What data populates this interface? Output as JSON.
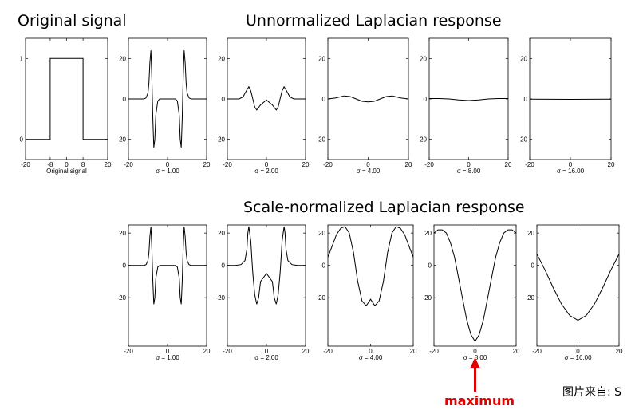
{
  "titles": {
    "original": "Original signal",
    "unnormalized": "Unnormalized Laplacian response",
    "normalized": "Scale-normalized Laplacian response"
  },
  "annotation": {
    "label": "maximum",
    "color": "#e00000"
  },
  "credit": "图片来自: S",
  "chart_data": [
    {
      "id": "orig",
      "type": "line",
      "xlabel": "Original signal",
      "xlim": [
        -20,
        20
      ],
      "ylim": [
        -0.25,
        1.25
      ],
      "xticks": [
        -20,
        -8,
        0,
        8,
        20
      ],
      "yticks": [
        0,
        1
      ],
      "series": [
        {
          "x": [
            -20,
            -8,
            -8,
            8,
            8,
            20
          ],
          "y": [
            0,
            0,
            1,
            1,
            0,
            0
          ]
        }
      ]
    },
    {
      "id": "u1",
      "type": "line",
      "xlabel": "σ = 1.00",
      "xlim": [
        -20,
        20
      ],
      "ylim": [
        -30,
        30
      ],
      "xticks": [
        -20,
        0,
        20
      ],
      "yticks": [
        -20,
        0,
        20
      ],
      "series": [
        {
          "x": [
            -20,
            -12,
            -11,
            -10,
            -9.5,
            -9,
            -8.5,
            -8,
            -7.5,
            -7,
            -6.5,
            -6,
            -5,
            -4,
            0,
            4,
            5,
            6,
            6.5,
            7,
            7.5,
            8,
            8.5,
            9,
            9.5,
            10,
            11,
            12,
            20
          ],
          "y": [
            0,
            0,
            0.5,
            3,
            8,
            18,
            24,
            10,
            -10,
            -24,
            -20,
            -8,
            -1,
            0,
            0,
            0,
            -1,
            -8,
            -20,
            -24,
            -10,
            10,
            24,
            18,
            8,
            3,
            0.5,
            0,
            0
          ]
        }
      ]
    },
    {
      "id": "u2",
      "type": "line",
      "xlabel": "σ = 2.00",
      "xlim": [
        -20,
        20
      ],
      "ylim": [
        -30,
        30
      ],
      "xticks": [
        -20,
        0,
        20
      ],
      "yticks": [
        -20,
        0,
        20
      ],
      "series": [
        {
          "x": [
            -20,
            -14,
            -12,
            -10,
            -9,
            -8,
            -7,
            -6,
            -5,
            -3,
            0,
            3,
            5,
            6,
            7,
            8,
            9,
            10,
            12,
            14,
            20
          ],
          "y": [
            0,
            0,
            1,
            4.5,
            6,
            4,
            0,
            -4,
            -5.5,
            -3,
            -0.5,
            -3,
            -5.5,
            -4,
            0,
            4,
            6,
            4.5,
            1,
            0,
            0
          ]
        }
      ]
    },
    {
      "id": "u4",
      "type": "line",
      "xlabel": "σ = 4.00",
      "xlim": [
        -20,
        20
      ],
      "ylim": [
        -30,
        30
      ],
      "xticks": [
        -20,
        0,
        20
      ],
      "yticks": [
        -20,
        0,
        20
      ],
      "series": [
        {
          "x": [
            -20,
            -16,
            -12,
            -9,
            -6,
            -3,
            0,
            3,
            6,
            9,
            12,
            16,
            20
          ],
          "y": [
            0,
            0.5,
            1.5,
            1.2,
            0,
            -1.2,
            -1.5,
            -1.2,
            0,
            1.2,
            1.5,
            0.5,
            0
          ]
        }
      ]
    },
    {
      "id": "u8",
      "type": "line",
      "xlabel": "σ = 8.00",
      "xlim": [
        -20,
        20
      ],
      "ylim": [
        -30,
        30
      ],
      "xticks": [
        -20,
        0,
        20
      ],
      "yticks": [
        -20,
        0,
        20
      ],
      "series": [
        {
          "x": [
            -20,
            -15,
            -10,
            -5,
            0,
            5,
            10,
            15,
            20
          ],
          "y": [
            0.2,
            0.2,
            0,
            -0.5,
            -0.8,
            -0.5,
            0,
            0.2,
            0.2
          ]
        }
      ]
    },
    {
      "id": "u16",
      "type": "line",
      "xlabel": "σ = 16.00",
      "xlim": [
        -20,
        20
      ],
      "ylim": [
        -30,
        30
      ],
      "xticks": [
        -20,
        0,
        20
      ],
      "yticks": [
        -20,
        0,
        20
      ],
      "series": [
        {
          "x": [
            -20,
            0,
            20
          ],
          "y": [
            -0.1,
            -0.2,
            -0.1
          ]
        }
      ]
    },
    {
      "id": "n1",
      "type": "line",
      "xlabel": "σ = 1.00",
      "xlim": [
        -20,
        20
      ],
      "ylim": [
        -50,
        25
      ],
      "xticks": [
        -20,
        0,
        20
      ],
      "yticks": [
        -20,
        0,
        20
      ],
      "series": [
        {
          "x": [
            -20,
            -12,
            -11,
            -10,
            -9.5,
            -9,
            -8.5,
            -8,
            -7.5,
            -7,
            -6.5,
            -6,
            -5,
            -4,
            0,
            4,
            5,
            6,
            6.5,
            7,
            7.5,
            8,
            8.5,
            9,
            9.5,
            10,
            11,
            12,
            20
          ],
          "y": [
            0,
            0,
            0.5,
            3,
            8,
            18,
            24,
            10,
            -10,
            -24,
            -20,
            -8,
            -1,
            0,
            0,
            0,
            -1,
            -8,
            -20,
            -24,
            -10,
            10,
            24,
            18,
            8,
            3,
            0.5,
            0,
            0
          ]
        }
      ]
    },
    {
      "id": "n2",
      "type": "line",
      "xlabel": "σ = 2.00",
      "xlim": [
        -20,
        20
      ],
      "ylim": [
        -50,
        25
      ],
      "xticks": [
        -20,
        0,
        20
      ],
      "yticks": [
        -20,
        0,
        20
      ],
      "series": [
        {
          "x": [
            -20,
            -16,
            -13,
            -11,
            -10,
            -9.5,
            -9,
            -8,
            -7.5,
            -7,
            -6,
            -5,
            -4,
            -3,
            0,
            3,
            4,
            5,
            6,
            7,
            7.5,
            8,
            9,
            9.5,
            10,
            11,
            13,
            16,
            20
          ],
          "y": [
            0,
            0,
            0.5,
            3,
            10,
            20,
            24,
            15,
            5,
            -5,
            -18,
            -24,
            -20,
            -10,
            -5,
            -10,
            -20,
            -24,
            -18,
            -5,
            5,
            15,
            24,
            20,
            10,
            3,
            0.5,
            0,
            0
          ]
        }
      ]
    },
    {
      "id": "n4",
      "type": "line",
      "xlabel": "σ = 4.00",
      "xlim": [
        -20,
        20
      ],
      "ylim": [
        -50,
        25
      ],
      "xticks": [
        -20,
        0,
        20
      ],
      "yticks": [
        -20,
        0,
        20
      ],
      "series": [
        {
          "x": [
            -20,
            -18,
            -16,
            -14,
            -12,
            -10,
            -8,
            -6,
            -4,
            -2,
            0,
            2,
            4,
            6,
            8,
            10,
            12,
            14,
            16,
            18,
            20
          ],
          "y": [
            5,
            12,
            19,
            23,
            24,
            20,
            8,
            -10,
            -22,
            -25,
            -21,
            -25,
            -22,
            -10,
            8,
            20,
            24,
            23,
            19,
            12,
            5
          ]
        }
      ]
    },
    {
      "id": "n8",
      "type": "line",
      "xlabel": "σ = 8.00",
      "xlim": [
        -20,
        20
      ],
      "ylim": [
        -50,
        25
      ],
      "xticks": [
        -20,
        0,
        20
      ],
      "yticks": [
        -20,
        0,
        20
      ],
      "series": [
        {
          "x": [
            -20,
            -18,
            -16,
            -14,
            -12,
            -10,
            -8,
            -6,
            -4,
            -2,
            0,
            2,
            4,
            6,
            8,
            10,
            12,
            14,
            16,
            18,
            20
          ],
          "y": [
            20,
            22,
            22,
            20,
            14,
            5,
            -8,
            -21,
            -34,
            -43,
            -47,
            -43,
            -34,
            -21,
            -8,
            5,
            14,
            20,
            22,
            22,
            20
          ]
        }
      ]
    },
    {
      "id": "n16",
      "type": "line",
      "xlabel": "σ = 16.00",
      "xlim": [
        -20,
        20
      ],
      "ylim": [
        -50,
        25
      ],
      "xticks": [
        -20,
        0,
        20
      ],
      "yticks": [
        -20,
        0,
        20
      ],
      "series": [
        {
          "x": [
            -20,
            -16,
            -12,
            -8,
            -4,
            0,
            4,
            8,
            12,
            16,
            20
          ],
          "y": [
            7,
            -3,
            -14,
            -24,
            -31,
            -34,
            -31,
            -24,
            -14,
            -3,
            7
          ]
        }
      ]
    }
  ]
}
